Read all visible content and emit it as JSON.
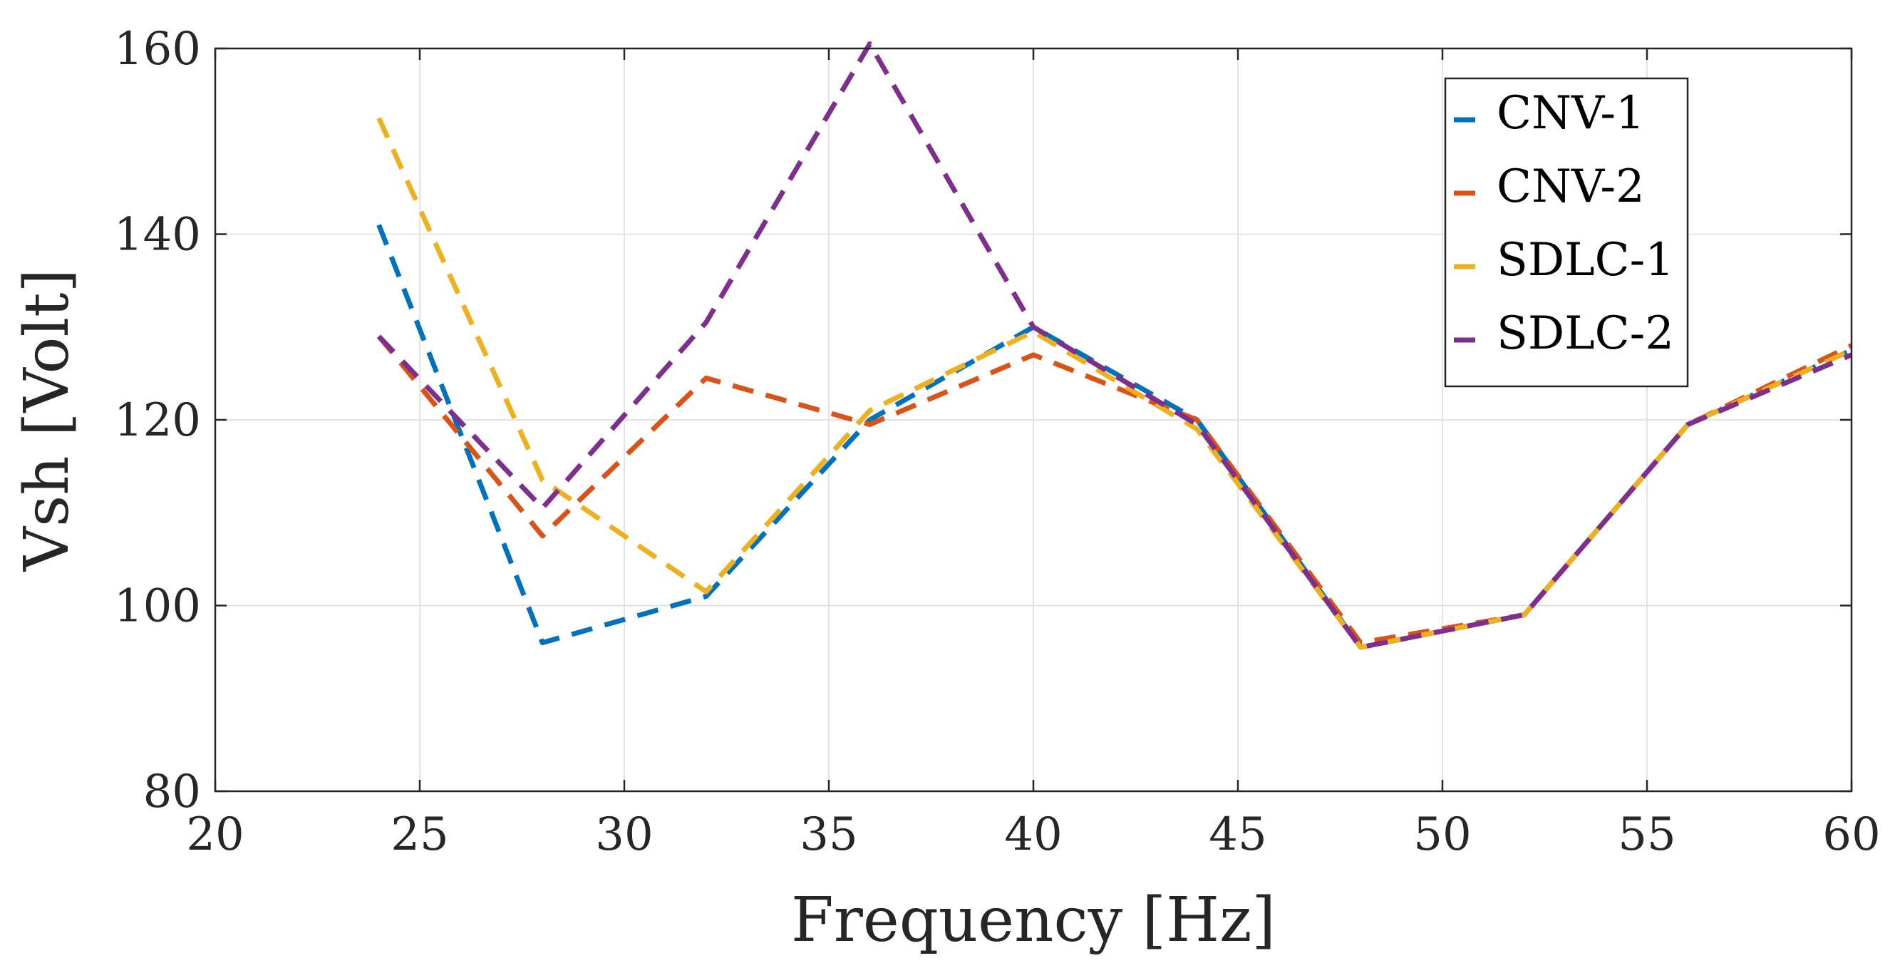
{
  "chart_data": {
    "type": "line",
    "title": "",
    "xlabel": "Frequency [Hz]",
    "ylabel": "Vsh [Volt]",
    "xlim": [
      20,
      60
    ],
    "ylim": [
      80,
      160
    ],
    "xticks": [
      20,
      25,
      30,
      35,
      40,
      45,
      50,
      55,
      60
    ],
    "yticks": [
      80,
      100,
      120,
      140,
      160
    ],
    "grid": true,
    "legend_position": "top-right",
    "line_style": "dashed",
    "x": [
      24,
      28,
      32,
      36,
      40,
      44,
      48,
      52,
      56,
      60
    ],
    "series": [
      {
        "name": "CNV-1",
        "color": "#0072BD",
        "values": [
          141,
          96,
          101,
          120,
          130,
          120,
          95.5,
          99,
          119.5,
          127.5
        ]
      },
      {
        "name": "CNV-2",
        "color": "#D95319",
        "values": [
          129,
          107.5,
          124.5,
          119.5,
          127,
          120,
          96,
          99,
          119.5,
          128
        ]
      },
      {
        "name": "SDLC-1",
        "color": "#EDB120",
        "values": [
          152.5,
          113.5,
          101.5,
          121,
          129.5,
          119,
          95.5,
          99,
          119.5,
          127.5
        ]
      },
      {
        "name": "SDLC-2",
        "color": "#7E2F8E",
        "values": [
          129,
          110.5,
          130.5,
          160.5,
          130,
          119.5,
          95.5,
          99,
          119.5,
          127
        ]
      }
    ]
  }
}
